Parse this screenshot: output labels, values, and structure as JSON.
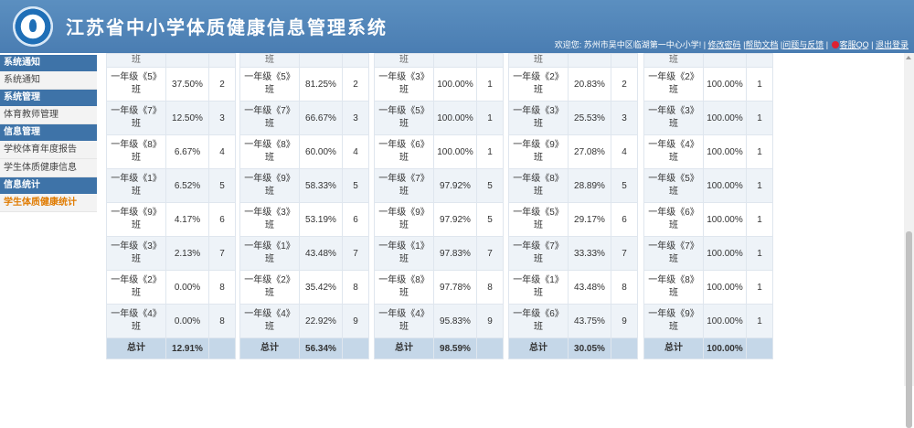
{
  "header": {
    "title": "江苏省中小学体质健康信息管理系统",
    "welcome": "欢迎您: 苏州市吴中区临湖第一中心小学!",
    "links": [
      "修改密码",
      "帮助文档",
      "问题与反馈",
      "客服QQ",
      "退出登录"
    ]
  },
  "sidebar": {
    "groups": [
      {
        "title": "系统通知",
        "items": [
          "系统通知"
        ]
      },
      {
        "title": "系统管理",
        "items": [
          "体育教师管理"
        ]
      },
      {
        "title": "信息管理",
        "items": [
          "学校体育年度报告",
          "学生体质健康信息"
        ]
      },
      {
        "title": "信息统计",
        "items": [
          "学生体质健康统计"
        ]
      }
    ],
    "active_item": "学生体质健康统计"
  },
  "tables": [
    {
      "top_label": "班",
      "rows": [
        [
          "一年级《5》班",
          "37.50%",
          "2"
        ],
        [
          "一年级《7》班",
          "12.50%",
          "3"
        ],
        [
          "一年级《8》班",
          "6.67%",
          "4"
        ],
        [
          "一年级《1》班",
          "6.52%",
          "5"
        ],
        [
          "一年级《9》班",
          "4.17%",
          "6"
        ],
        [
          "一年级《3》班",
          "2.13%",
          "7"
        ],
        [
          "一年级《2》班",
          "0.00%",
          "8"
        ],
        [
          "一年级《4》班",
          "0.00%",
          "8"
        ]
      ],
      "total": [
        "总计",
        "12.91%",
        ""
      ]
    },
    {
      "top_label": "班",
      "rows": [
        [
          "一年级《5》班",
          "81.25%",
          "2"
        ],
        [
          "一年级《7》班",
          "66.67%",
          "3"
        ],
        [
          "一年级《8》班",
          "60.00%",
          "4"
        ],
        [
          "一年级《9》班",
          "58.33%",
          "5"
        ],
        [
          "一年级《3》班",
          "53.19%",
          "6"
        ],
        [
          "一年级《1》班",
          "43.48%",
          "7"
        ],
        [
          "一年级《2》班",
          "35.42%",
          "8"
        ],
        [
          "一年级《4》班",
          "22.92%",
          "9"
        ]
      ],
      "total": [
        "总计",
        "56.34%",
        ""
      ]
    },
    {
      "top_label": "班",
      "rows": [
        [
          "一年级《3》班",
          "100.00%",
          "1"
        ],
        [
          "一年级《5》班",
          "100.00%",
          "1"
        ],
        [
          "一年级《6》班",
          "100.00%",
          "1"
        ],
        [
          "一年级《7》班",
          "97.92%",
          "5"
        ],
        [
          "一年级《9》班",
          "97.92%",
          "5"
        ],
        [
          "一年级《1》班",
          "97.83%",
          "7"
        ],
        [
          "一年级《8》班",
          "97.78%",
          "8"
        ],
        [
          "一年级《4》班",
          "95.83%",
          "9"
        ]
      ],
      "total": [
        "总计",
        "98.59%",
        ""
      ]
    },
    {
      "top_label": "班",
      "rows": [
        [
          "一年级《2》班",
          "20.83%",
          "2"
        ],
        [
          "一年级《3》班",
          "25.53%",
          "3"
        ],
        [
          "一年级《9》班",
          "27.08%",
          "4"
        ],
        [
          "一年级《8》班",
          "28.89%",
          "5"
        ],
        [
          "一年级《5》班",
          "29.17%",
          "6"
        ],
        [
          "一年级《7》班",
          "33.33%",
          "7"
        ],
        [
          "一年级《1》班",
          "43.48%",
          "8"
        ],
        [
          "一年级《6》班",
          "43.75%",
          "9"
        ]
      ],
      "total": [
        "总计",
        "30.05%",
        ""
      ]
    },
    {
      "top_label": "班",
      "rows": [
        [
          "一年级《2》班",
          "100.00%",
          "1"
        ],
        [
          "一年级《3》班",
          "100.00%",
          "1"
        ],
        [
          "一年级《4》班",
          "100.00%",
          "1"
        ],
        [
          "一年级《5》班",
          "100.00%",
          "1"
        ],
        [
          "一年级《6》班",
          "100.00%",
          "1"
        ],
        [
          "一年级《7》班",
          "100.00%",
          "1"
        ],
        [
          "一年级《8》班",
          "100.00%",
          "1"
        ],
        [
          "一年级《9》班",
          "100.00%",
          "1"
        ]
      ],
      "total": [
        "总计",
        "100.00%",
        ""
      ]
    }
  ]
}
